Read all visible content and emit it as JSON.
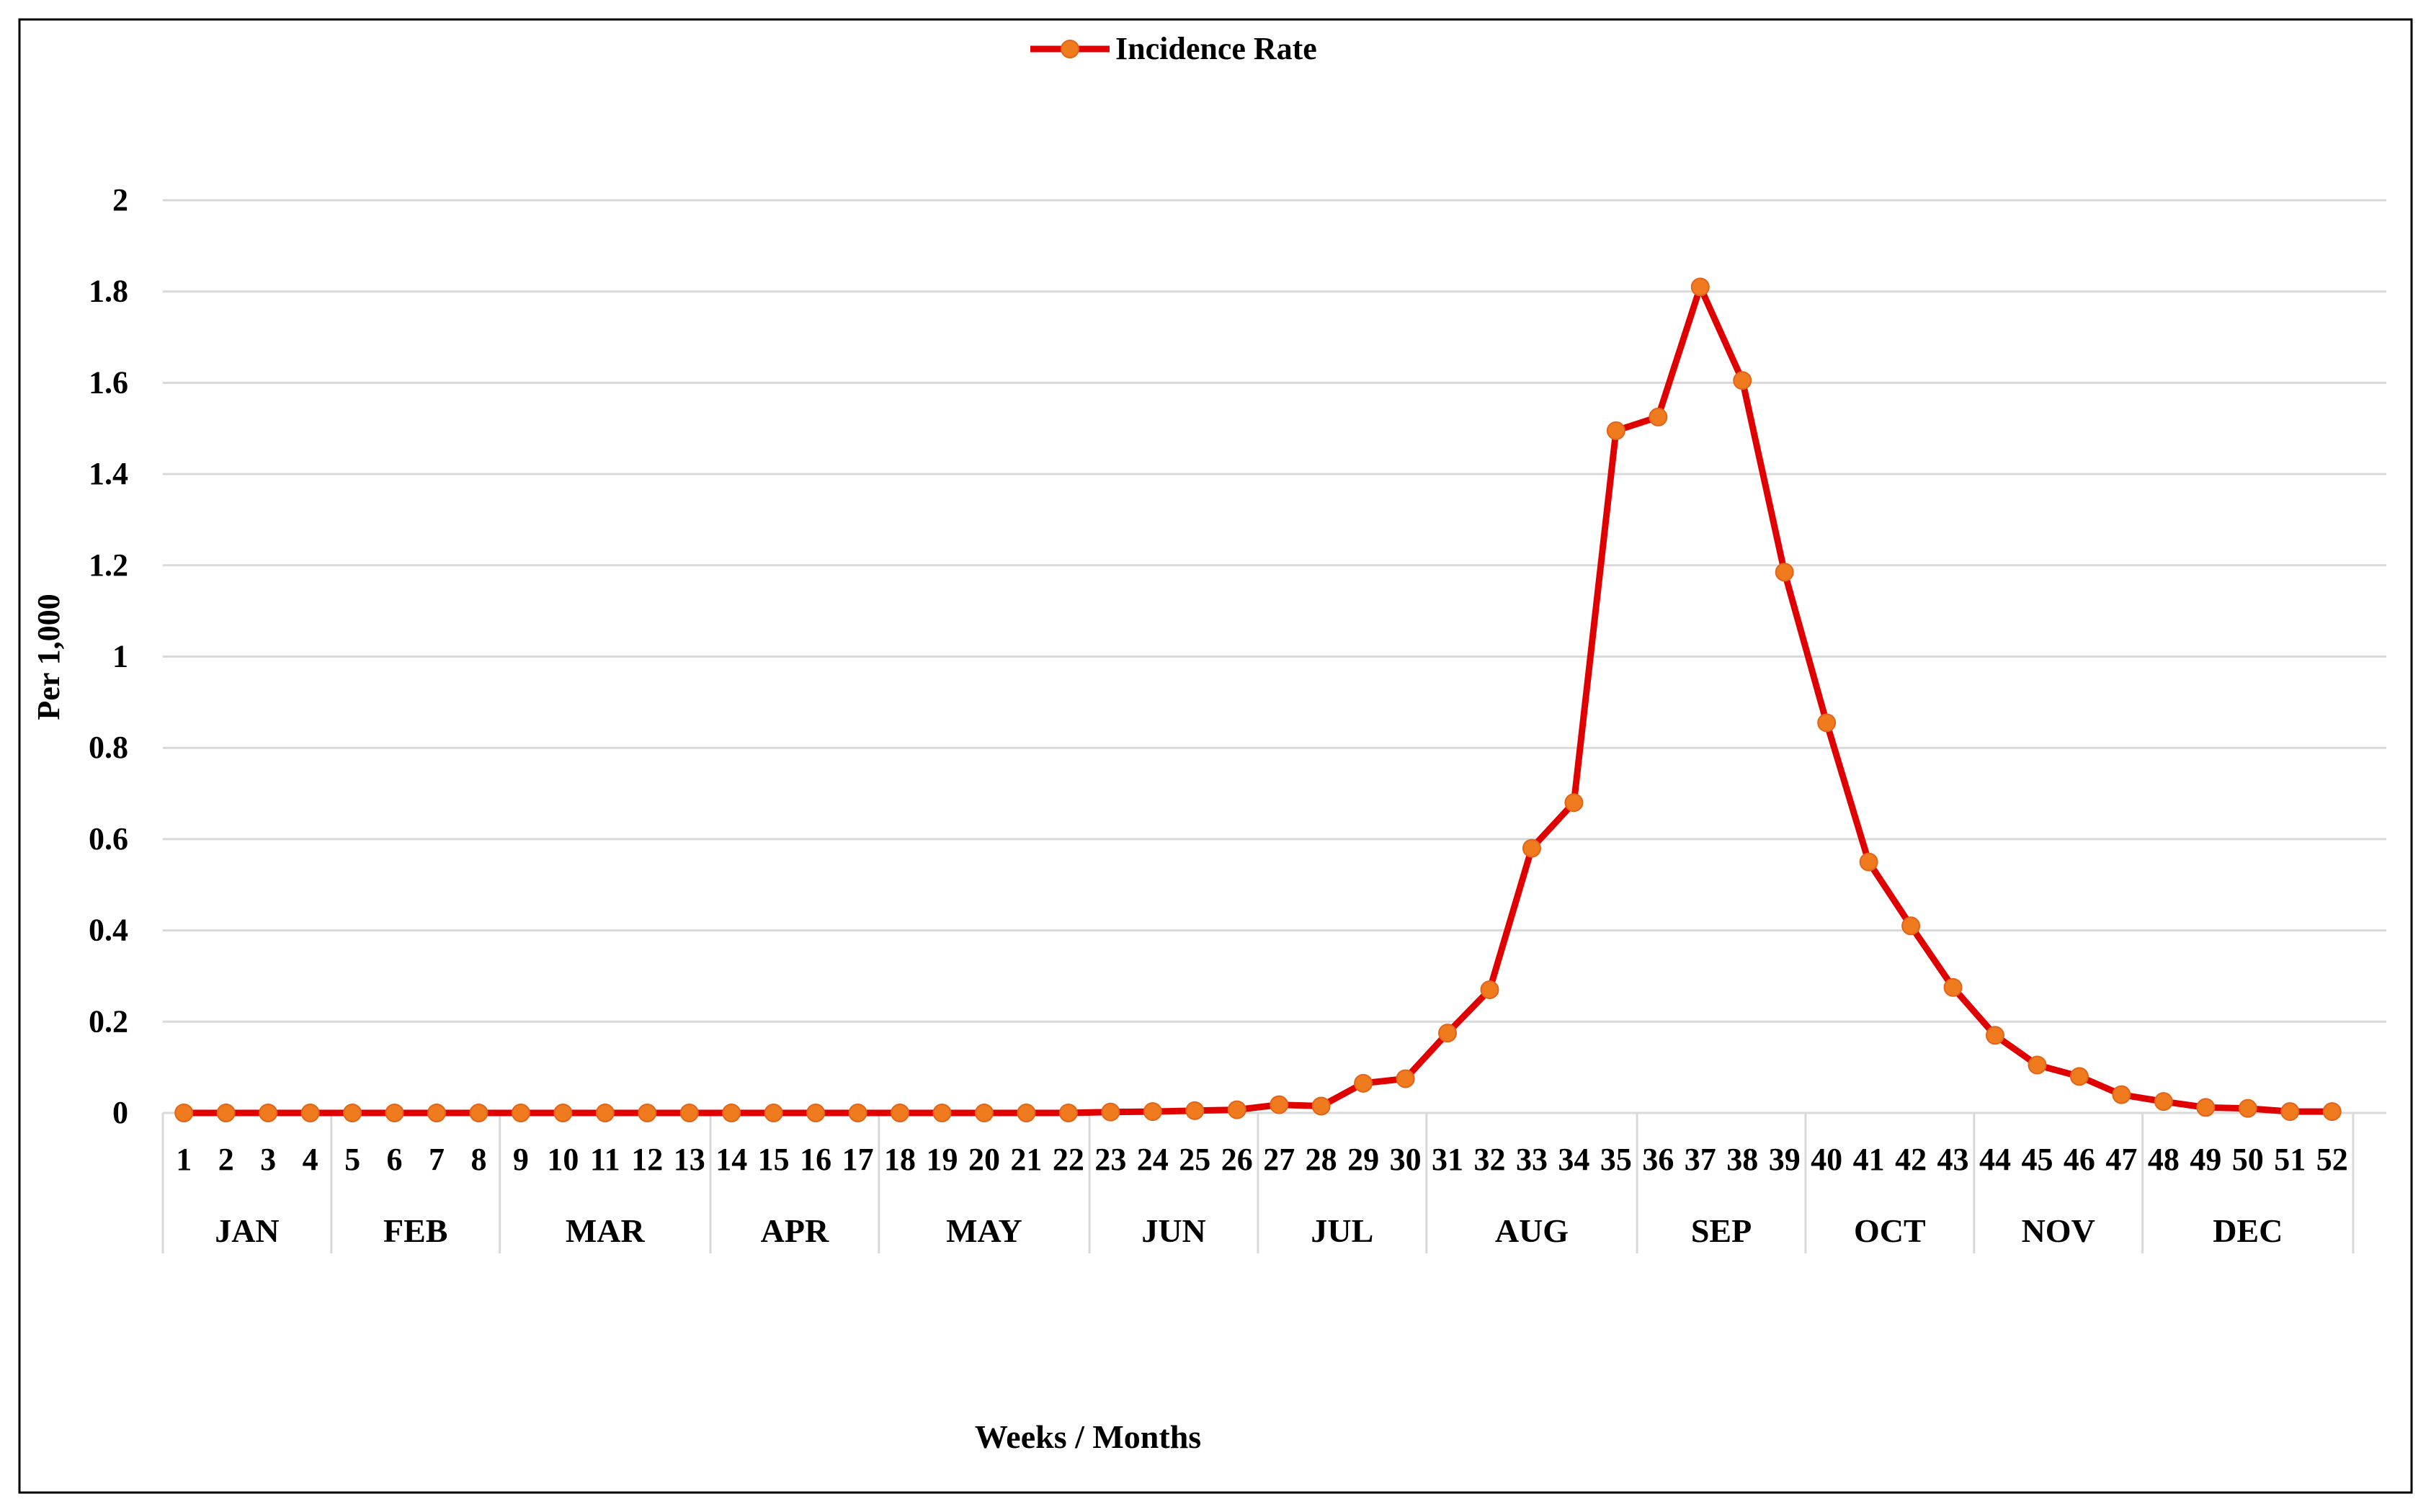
{
  "chart_data": {
    "type": "line",
    "xlabel": "Weeks / Months",
    "ylabel": "Per 1,000",
    "ylim": [
      0,
      2
    ],
    "yticks": [
      "0",
      "0.2",
      "0.4",
      "0.6",
      "0.8",
      "1",
      "1.2",
      "1.4",
      "1.6",
      "1.8",
      "2"
    ],
    "grid": true,
    "legend_position": "top-center",
    "x": [
      1,
      2,
      3,
      4,
      5,
      6,
      7,
      8,
      9,
      10,
      11,
      12,
      13,
      14,
      15,
      16,
      17,
      18,
      19,
      20,
      21,
      22,
      23,
      24,
      25,
      26,
      27,
      28,
      29,
      30,
      31,
      32,
      33,
      34,
      35,
      36,
      37,
      38,
      39,
      40,
      41,
      42,
      43,
      44,
      45,
      46,
      47,
      48,
      49,
      50,
      51,
      52
    ],
    "months": [
      {
        "label": "JAN",
        "weeks": [
          1,
          4
        ]
      },
      {
        "label": "FEB",
        "weeks": [
          5,
          8
        ]
      },
      {
        "label": "MAR",
        "weeks": [
          9,
          13
        ]
      },
      {
        "label": "APR",
        "weeks": [
          14,
          17
        ]
      },
      {
        "label": "MAY",
        "weeks": [
          18,
          22
        ]
      },
      {
        "label": "JUN",
        "weeks": [
          23,
          26
        ]
      },
      {
        "label": "JUL",
        "weeks": [
          27,
          30
        ]
      },
      {
        "label": "AUG",
        "weeks": [
          31,
          35
        ]
      },
      {
        "label": "SEP",
        "weeks": [
          36,
          39
        ]
      },
      {
        "label": "OCT",
        "weeks": [
          40,
          43
        ]
      },
      {
        "label": "NOV",
        "weeks": [
          44,
          47
        ]
      },
      {
        "label": "DEC",
        "weeks": [
          48,
          52
        ]
      }
    ],
    "series": [
      {
        "name": "Incidence Rate",
        "line_color": "#e00000",
        "marker_color": "#f07a1e",
        "values": [
          0,
          0,
          0,
          0,
          0,
          0,
          0,
          0,
          0,
          0,
          0,
          0,
          0,
          0,
          0,
          0,
          0,
          0,
          0,
          0,
          0,
          0,
          0.002,
          0.003,
          0.005,
          0.007,
          0.018,
          0.015,
          0.065,
          0.075,
          0.175,
          0.27,
          0.58,
          0.68,
          1.495,
          1.525,
          1.81,
          1.605,
          1.185,
          0.855,
          0.55,
          0.41,
          0.275,
          0.17,
          0.105,
          0.08,
          0.04,
          0.025,
          0.012,
          0.01,
          0.003,
          0.003
        ]
      }
    ]
  }
}
